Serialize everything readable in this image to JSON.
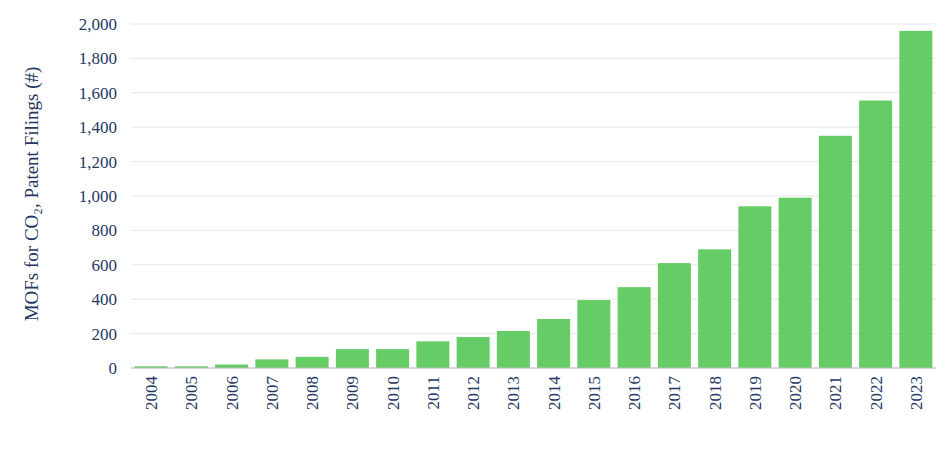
{
  "chart_data": {
    "type": "bar",
    "y_label": "MOFs for CO₂, Patent Filings (#)",
    "categories": [
      "2004",
      "2005",
      "2006",
      "2007",
      "2008",
      "2009",
      "2010",
      "2011",
      "2012",
      "2013",
      "2014",
      "2015",
      "2016",
      "2017",
      "2018",
      "2019",
      "2020",
      "2021",
      "2022",
      "2023"
    ],
    "values": [
      10,
      10,
      20,
      50,
      65,
      110,
      110,
      155,
      180,
      215,
      285,
      395,
      470,
      610,
      690,
      940,
      990,
      1350,
      1555,
      1960
    ],
    "color": "#66cc66",
    "ylim": [
      0,
      2000
    ],
    "yticks": [
      0,
      200,
      400,
      600,
      800,
      {
        "value": 1000,
        "label": "1,000"
      },
      {
        "value": 1200,
        "label": "1,200"
      },
      {
        "value": 1400,
        "label": "1,400"
      },
      {
        "value": 1600,
        "label": "1,600"
      },
      {
        "value": 1800,
        "label": "1,800"
      },
      {
        "value": 2000,
        "label": "2,000"
      }
    ],
    "grid": true
  }
}
